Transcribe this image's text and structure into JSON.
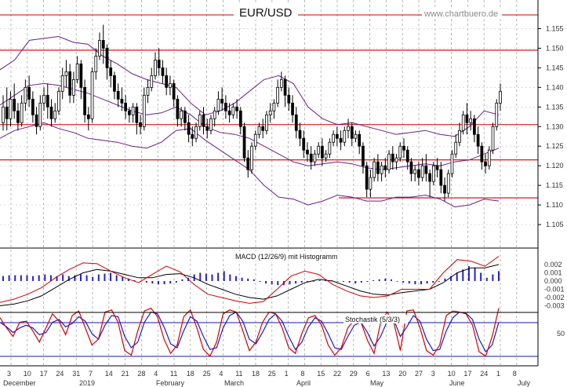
{
  "chart_data": [
    {
      "type": "candlestick",
      "title": "EUR/USD",
      "watermark": "www.chartbuero.de",
      "y_ticks": [
        "1.155",
        "1.150",
        "1.145",
        "1.140",
        "1.135",
        "1.130",
        "1.125",
        "1.120",
        "1.115",
        "1.110",
        "1.105"
      ],
      "ylim": [
        1.103,
        1.159
      ],
      "support_resistance": [
        1.1585,
        1.1495,
        1.1305,
        1.1215,
        1.1118
      ],
      "candles": [
        [
          1.131,
          1.138,
          1.135,
          1.129
        ],
        [
          1.135,
          1.14,
          1.132,
          1.129
        ],
        [
          1.132,
          1.139,
          1.137,
          1.13
        ],
        [
          1.137,
          1.141,
          1.134,
          1.132
        ],
        [
          1.134,
          1.136,
          1.131,
          1.129
        ],
        [
          1.131,
          1.138,
          1.136,
          1.13
        ],
        [
          1.136,
          1.142,
          1.14,
          1.134
        ],
        [
          1.14,
          1.143,
          1.137,
          1.135
        ],
        [
          1.137,
          1.139,
          1.133,
          1.131
        ],
        [
          1.133,
          1.135,
          1.13,
          1.128
        ],
        [
          1.13,
          1.138,
          1.136,
          1.129
        ],
        [
          1.136,
          1.14,
          1.138,
          1.134
        ],
        [
          1.138,
          1.141,
          1.135,
          1.132
        ],
        [
          1.135,
          1.137,
          1.132,
          1.13
        ],
        [
          1.132,
          1.136,
          1.134,
          1.131
        ],
        [
          1.134,
          1.14,
          1.139,
          1.133
        ],
        [
          1.139,
          1.145,
          1.143,
          1.137
        ],
        [
          1.143,
          1.147,
          1.144,
          1.14
        ],
        [
          1.144,
          1.146,
          1.138,
          1.136
        ],
        [
          1.138,
          1.144,
          1.142,
          1.136
        ],
        [
          1.142,
          1.148,
          1.146,
          1.141
        ],
        [
          1.146,
          1.147,
          1.14,
          1.137
        ],
        [
          1.14,
          1.142,
          1.133,
          1.131
        ],
        [
          1.133,
          1.135,
          1.132,
          1.129
        ],
        [
          1.132,
          1.145,
          1.144,
          1.131
        ],
        [
          1.144,
          1.15,
          1.148,
          1.142
        ],
        [
          1.148,
          1.154,
          1.152,
          1.147
        ],
        [
          1.152,
          1.156,
          1.15,
          1.146
        ],
        [
          1.15,
          1.151,
          1.145,
          1.142
        ],
        [
          1.145,
          1.147,
          1.143,
          1.14
        ],
        [
          1.143,
          1.144,
          1.139,
          1.137
        ],
        [
          1.139,
          1.141,
          1.137,
          1.135
        ],
        [
          1.137,
          1.14,
          1.136,
          1.134
        ],
        [
          1.136,
          1.138,
          1.134,
          1.132
        ],
        [
          1.134,
          1.135,
          1.133,
          1.131
        ],
        [
          1.133,
          1.136,
          1.135,
          1.131
        ],
        [
          1.135,
          1.136,
          1.131,
          1.128
        ],
        [
          1.131,
          1.133,
          1.13,
          1.128
        ],
        [
          1.13,
          1.14,
          1.138,
          1.129
        ],
        [
          1.138,
          1.142,
          1.14,
          1.136
        ],
        [
          1.14,
          1.145,
          1.143,
          1.139
        ],
        [
          1.143,
          1.149,
          1.147,
          1.142
        ],
        [
          1.147,
          1.15,
          1.145,
          1.143
        ],
        [
          1.145,
          1.147,
          1.143,
          1.141
        ],
        [
          1.143,
          1.145,
          1.14,
          1.138
        ],
        [
          1.14,
          1.143,
          1.141,
          1.138
        ],
        [
          1.141,
          1.142,
          1.137,
          1.135
        ],
        [
          1.137,
          1.138,
          1.132,
          1.13
        ],
        [
          1.132,
          1.135,
          1.134,
          1.13
        ],
        [
          1.134,
          1.135,
          1.131,
          1.129
        ],
        [
          1.131,
          1.133,
          1.128,
          1.126
        ],
        [
          1.128,
          1.13,
          1.127,
          1.125
        ],
        [
          1.127,
          1.131,
          1.13,
          1.126
        ],
        [
          1.13,
          1.134,
          1.133,
          1.129
        ],
        [
          1.133,
          1.135,
          1.13,
          1.128
        ],
        [
          1.13,
          1.132,
          1.129,
          1.127
        ],
        [
          1.129,
          1.133,
          1.132,
          1.128
        ],
        [
          1.132,
          1.135,
          1.134,
          1.13
        ],
        [
          1.134,
          1.139,
          1.137,
          1.133
        ],
        [
          1.137,
          1.14,
          1.136,
          1.134
        ],
        [
          1.136,
          1.138,
          1.134,
          1.132
        ],
        [
          1.134,
          1.136,
          1.133,
          1.131
        ],
        [
          1.133,
          1.136,
          1.135,
          1.132
        ],
        [
          1.135,
          1.137,
          1.134,
          1.132
        ],
        [
          1.134,
          1.135,
          1.13,
          1.128
        ],
        [
          1.13,
          1.131,
          1.122,
          1.121
        ],
        [
          1.122,
          1.124,
          1.119,
          1.117
        ],
        [
          1.119,
          1.126,
          1.125,
          1.118
        ],
        [
          1.125,
          1.129,
          1.128,
          1.124
        ],
        [
          1.128,
          1.131,
          1.13,
          1.127
        ],
        [
          1.13,
          1.132,
          1.129,
          1.127
        ],
        [
          1.129,
          1.134,
          1.133,
          1.128
        ],
        [
          1.133,
          1.136,
          1.134,
          1.131
        ],
        [
          1.134,
          1.137,
          1.136,
          1.132
        ],
        [
          1.136,
          1.142,
          1.14,
          1.135
        ],
        [
          1.14,
          1.144,
          1.142,
          1.139
        ],
        [
          1.142,
          1.143,
          1.138,
          1.135
        ],
        [
          1.138,
          1.14,
          1.136,
          1.134
        ],
        [
          1.136,
          1.138,
          1.133,
          1.131
        ],
        [
          1.133,
          1.135,
          1.129,
          1.127
        ],
        [
          1.129,
          1.131,
          1.127,
          1.125
        ],
        [
          1.127,
          1.129,
          1.124,
          1.122
        ],
        [
          1.124,
          1.126,
          1.123,
          1.121
        ],
        [
          1.123,
          1.125,
          1.121,
          1.119
        ],
        [
          1.121,
          1.124,
          1.123,
          1.12
        ],
        [
          1.123,
          1.126,
          1.125,
          1.122
        ],
        [
          1.125,
          1.127,
          1.122,
          1.12
        ],
        [
          1.122,
          1.124,
          1.123,
          1.121
        ],
        [
          1.123,
          1.127,
          1.126,
          1.122
        ],
        [
          1.126,
          1.129,
          1.128,
          1.125
        ],
        [
          1.128,
          1.13,
          1.127,
          1.125
        ],
        [
          1.127,
          1.129,
          1.126,
          1.124
        ],
        [
          1.126,
          1.13,
          1.129,
          1.125
        ],
        [
          1.129,
          1.132,
          1.13,
          1.127
        ],
        [
          1.13,
          1.131,
          1.127,
          1.125
        ],
        [
          1.127,
          1.129,
          1.128,
          1.126
        ],
        [
          1.128,
          1.129,
          1.125,
          1.123
        ],
        [
          1.125,
          1.126,
          1.12,
          1.118
        ],
        [
          1.12,
          1.121,
          1.114,
          1.112
        ],
        [
          1.114,
          1.119,
          1.117,
          1.112
        ],
        [
          1.117,
          1.122,
          1.121,
          1.116
        ],
        [
          1.121,
          1.123,
          1.118,
          1.116
        ],
        [
          1.118,
          1.121,
          1.12,
          1.116
        ],
        [
          1.12,
          1.122,
          1.119,
          1.117
        ],
        [
          1.119,
          1.124,
          1.123,
          1.118
        ],
        [
          1.123,
          1.125,
          1.121,
          1.119
        ],
        [
          1.121,
          1.123,
          1.122,
          1.119
        ],
        [
          1.122,
          1.126,
          1.125,
          1.121
        ],
        [
          1.125,
          1.127,
          1.124,
          1.122
        ],
        [
          1.124,
          1.125,
          1.121,
          1.119
        ],
        [
          1.121,
          1.122,
          1.118,
          1.116
        ],
        [
          1.118,
          1.12,
          1.119,
          1.116
        ],
        [
          1.119,
          1.121,
          1.117,
          1.115
        ],
        [
          1.117,
          1.122,
          1.12,
          1.116
        ],
        [
          1.12,
          1.123,
          1.118,
          1.116
        ],
        [
          1.118,
          1.119,
          1.116,
          1.112
        ],
        [
          1.116,
          1.121,
          1.12,
          1.115
        ],
        [
          1.12,
          1.122,
          1.119,
          1.117
        ],
        [
          1.119,
          1.121,
          1.115,
          1.113
        ],
        [
          1.115,
          1.117,
          1.113,
          1.111
        ],
        [
          1.113,
          1.119,
          1.118,
          1.112
        ],
        [
          1.118,
          1.124,
          1.123,
          1.117
        ],
        [
          1.123,
          1.128,
          1.126,
          1.122
        ],
        [
          1.126,
          1.131,
          1.129,
          1.125
        ],
        [
          1.129,
          1.134,
          1.133,
          1.128
        ],
        [
          1.133,
          1.136,
          1.131,
          1.128
        ],
        [
          1.131,
          1.134,
          1.132,
          1.129
        ],
        [
          1.132,
          1.133,
          1.128,
          1.126
        ],
        [
          1.128,
          1.13,
          1.125,
          1.123
        ],
        [
          1.125,
          1.126,
          1.121,
          1.119
        ],
        [
          1.121,
          1.123,
          1.12,
          1.118
        ],
        [
          1.12,
          1.125,
          1.124,
          1.119
        ],
        [
          1.124,
          1.131,
          1.13,
          1.123
        ],
        [
          1.13,
          1.137,
          1.136,
          1.129
        ],
        [
          1.136,
          1.141,
          1.139,
          1.134
        ]
      ],
      "bollinger": {
        "upper": [
          1.1445,
          1.147,
          1.152,
          1.1525,
          1.153,
          1.1515,
          1.151,
          1.148,
          1.146,
          1.1435,
          1.142,
          1.141,
          1.14,
          1.136,
          1.133,
          1.134,
          1.136,
          1.139,
          1.142,
          1.143,
          1.141,
          1.135,
          1.132,
          1.1305,
          1.131,
          1.13,
          1.129,
          1.128,
          1.1285,
          1.129,
          1.128,
          1.1275,
          1.13,
          1.134,
          1.133
        ],
        "middle": [
          1.1355,
          1.138,
          1.1405,
          1.141,
          1.1405,
          1.1395,
          1.1385,
          1.137,
          1.1355,
          1.134,
          1.133,
          1.1335,
          1.135,
          1.133,
          1.13,
          1.1285,
          1.128,
          1.127,
          1.125,
          1.123,
          1.121,
          1.12,
          1.1205,
          1.121,
          1.1205,
          1.1195,
          1.119,
          1.1195,
          1.12,
          1.1205,
          1.12,
          1.121,
          1.1215,
          1.123,
          1.1245
        ],
        "lower": [
          1.127,
          1.129,
          1.13,
          1.131,
          1.1295,
          1.1285,
          1.127,
          1.1265,
          1.126,
          1.125,
          1.1245,
          1.126,
          1.129,
          1.1295,
          1.1265,
          1.124,
          1.1215,
          1.119,
          1.115,
          1.112,
          1.1115,
          1.11,
          1.111,
          1.1125,
          1.112,
          1.111,
          1.111,
          1.112,
          1.112,
          1.1125,
          1.1115,
          1.1095,
          1.11,
          1.1115,
          1.111
        ]
      }
    },
    {
      "type": "line",
      "title": "MACD (12/26/9) mit Histogramm",
      "y_ticks": [
        "0.002",
        "0.001",
        "0.000",
        "-0.001",
        "-0.002",
        "-0.003"
      ],
      "ylim": [
        -0.0038,
        0.003
      ],
      "macd": [
        -0.0026,
        -0.0022,
        -0.0016,
        -0.0008,
        0.0004,
        0.0014,
        0.0022,
        0.0021,
        0.0012,
        0.0004,
        -0.0002,
        0.0008,
        0.0018,
        0.0011,
        -0.0004,
        -0.0016,
        -0.002,
        -0.0024,
        -0.0027,
        -0.0025,
        -0.001,
        0.0006,
        0.0012,
        0.0008,
        -0.0004,
        -0.0012,
        -0.0018,
        -0.002,
        -0.0018,
        -0.001,
        -0.001,
        -0.001,
        0.001,
        0.0026,
        0.0024,
        0.0018,
        0.003
      ],
      "signal": [
        -0.003,
        -0.0028,
        -0.0024,
        -0.0018,
        -0.0008,
        0.0002,
        0.001,
        0.0014,
        0.0012,
        0.0008,
        0.0004,
        0.0004,
        0.0008,
        0.0009,
        0.0004,
        -0.0004,
        -0.001,
        -0.0016,
        -0.002,
        -0.0022,
        -0.0018,
        -0.001,
        -0.0002,
        0.0002,
        0.0,
        -0.0006,
        -0.0012,
        -0.0016,
        -0.0017,
        -0.0014,
        -0.0012,
        -0.001,
        -0.0002,
        0.001,
        0.0016,
        0.0016,
        0.002
      ],
      "histogram": [
        0.0006,
        0.0007,
        0.0007,
        0.0007,
        0.0007,
        0.0006,
        0.0007,
        0.0008,
        0.0007,
        0.0006,
        0.0008,
        0.0006,
        0.0007,
        0.0008,
        0.0007,
        0.0005,
        0.0008,
        0.0009,
        0.001,
        0.0007,
        0.0005,
        0.0003,
        0.0001,
        -0.0001,
        -0.0002,
        -0.0003,
        -0.0004,
        -0.0004,
        -0.0003,
        -0.0002,
        0.0002,
        0.0004,
        0.0008,
        0.001,
        0.0009,
        0.0008,
        0.001,
        0.0012,
        0.0008,
        0.0006,
        0.0004,
        0.0003,
        0.0002,
        -0.0001,
        -0.0003,
        -0.0004,
        -0.0005,
        -0.0005,
        -0.0004,
        -0.0003,
        -0.0002,
        -0.0001,
        0.0,
        0.0001,
        0.0002,
        0.0001,
        0.0,
        -0.0001,
        -0.0002,
        -0.0003,
        -0.0002,
        -0.0001,
        0.0001,
        0.0002,
        0.0003,
        0.0002,
        0.0,
        -0.0002,
        -0.0003,
        -0.0004,
        -0.0004,
        -0.0003,
        -0.0002,
        0.0,
        0.0003,
        0.0006,
        0.001,
        0.0014,
        0.0018,
        0.0016,
        0.001,
        0.0004,
        0.0008,
        0.0012
      ]
    },
    {
      "type": "line",
      "title": "Stochastik (5/3/3)",
      "y_ticks": [
        "50"
      ],
      "ylim": [
        0,
        100
      ],
      "levels": [
        80,
        20
      ],
      "k": [
        78,
        60,
        45,
        70,
        72,
        55,
        35,
        60,
        85,
        72,
        48,
        82,
        90,
        60,
        30,
        40,
        88,
        92,
        70,
        20,
        12,
        55,
        90,
        95,
        80,
        40,
        15,
        30,
        80,
        92,
        60,
        22,
        10,
        35,
        85,
        92,
        88,
        55,
        20,
        35,
        70,
        88,
        85,
        60,
        25,
        15,
        50,
        78,
        82,
        65,
        30,
        12,
        25,
        60,
        75,
        70,
        38,
        15,
        70,
        88,
        70,
        20,
        90,
        92,
        60,
        20,
        12,
        30,
        82,
        90,
        88,
        85,
        65,
        18,
        10,
        45,
        95
      ],
      "d": [
        70,
        62,
        52,
        60,
        65,
        60,
        48,
        52,
        70,
        75,
        62,
        68,
        80,
        72,
        50,
        40,
        65,
        82,
        80,
        45,
        25,
        35,
        70,
        88,
        85,
        62,
        32,
        25,
        55,
        80,
        72,
        45,
        22,
        25,
        60,
        82,
        88,
        72,
        40,
        32,
        52,
        75,
        85,
        72,
        45,
        22,
        35,
        62,
        78,
        72,
        50,
        25,
        22,
        45,
        65,
        70,
        52,
        28,
        45,
        72,
        75,
        45,
        62,
        82,
        72,
        40,
        20,
        22,
        55,
        78,
        88,
        86,
        75,
        40,
        18,
        30,
        70
      ]
    }
  ],
  "x_axis": {
    "day_ticks": [
      "3",
      "10",
      "17",
      "24",
      "31",
      "7",
      "14",
      "21",
      "28",
      "4",
      "11",
      "18",
      "25",
      "4",
      "11",
      "18",
      "25",
      "1",
      "8",
      "15",
      "22",
      "29",
      "6",
      "13",
      "20",
      "27",
      "3",
      "10",
      "17",
      "24",
      "1",
      "8"
    ],
    "month_labels": [
      "December",
      "2019",
      "February",
      "March",
      "April",
      "May",
      "June",
      "July"
    ]
  }
}
